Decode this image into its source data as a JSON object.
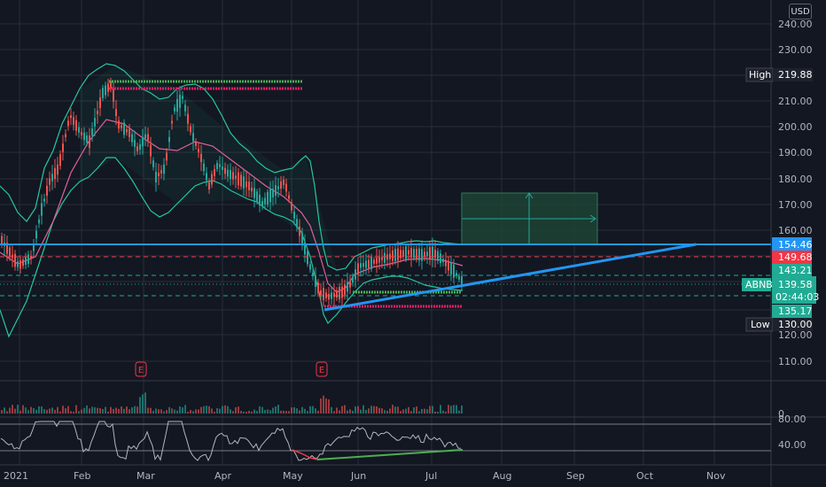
{
  "chart": {
    "currency": "USD",
    "symbol": "ABNB",
    "last_price": "139.58",
    "countdown": "02:44:03",
    "high_label": "High",
    "high_value": "219.88",
    "low_label": "Low",
    "low_value": "130.00",
    "price_ticks": [
      "240.00",
      "230.00",
      "220.00",
      "210.00",
      "200.00",
      "190.00",
      "180.00",
      "170.00",
      "160.00",
      "120.00",
      "110.00"
    ],
    "month_labels": [
      "2021",
      "Feb",
      "Mar",
      "Apr",
      "May",
      "Jun",
      "Jul",
      "Aug",
      "Sep",
      "Oct",
      "Nov"
    ],
    "level_labels": [
      {
        "value": "154.46",
        "color": "#2196f3"
      },
      {
        "value": "149.68",
        "color": "#f23645"
      },
      {
        "value": "143.21",
        "color": "#22ab94"
      },
      {
        "value": "135.17",
        "color": "#22ab94"
      }
    ],
    "earnings_marker": "E",
    "volume_zero": "0",
    "rsi_ticks": [
      "80.00",
      "40.00"
    ],
    "colors": {
      "background": "#131722",
      "up": "#26a69a",
      "down": "#ef5350",
      "bollinger": "#26c6a0",
      "ma": "#e0609a",
      "trendline": "#2196f3",
      "rsi": "#b2b5be"
    }
  }
}
